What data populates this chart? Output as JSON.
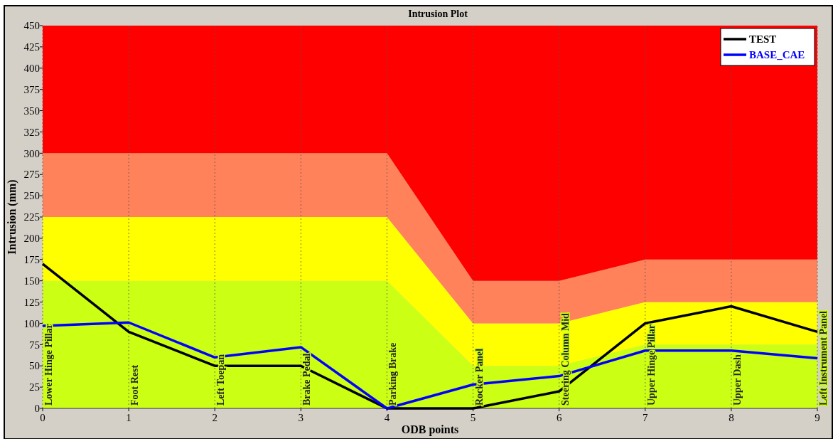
{
  "chart_data": {
    "type": "line",
    "title": "Intrusion Plot",
    "xlabel": "ODB points",
    "ylabel": "Intrusion (mm)",
    "x": [
      0,
      1,
      2,
      3,
      4,
      5,
      6,
      7,
      8,
      9
    ],
    "stacked": true,
    "series": [
      {
        "type": "area",
        "color": "#cbff14",
        "values": [
          150,
          150,
          150,
          150,
          150,
          50,
          50,
          75,
          75,
          75
        ]
      },
      {
        "type": "area",
        "color": "#ffff00",
        "values": [
          75,
          75,
          75,
          75,
          75,
          50,
          50,
          50,
          50,
          50
        ]
      },
      {
        "type": "area",
        "color": "#ff825a",
        "values": [
          75,
          75,
          75,
          75,
          75,
          50,
          50,
          50,
          50,
          50
        ]
      },
      {
        "type": "area",
        "color": "#ff0000",
        "values": [
          150,
          150,
          150,
          150,
          150,
          300,
          300,
          275,
          275,
          275
        ]
      },
      {
        "name": "TEST",
        "color": "#000000",
        "values": [
          170,
          90,
          50,
          50,
          0,
          0,
          20,
          100,
          120,
          90
        ]
      },
      {
        "name": "BASE_CAE",
        "color": "#0000ff",
        "values": [
          97,
          101,
          60,
          72,
          0,
          28,
          38,
          68,
          68,
          59
        ]
      }
    ],
    "annotations": [
      {
        "text": "Lower Hinge Pillar",
        "x": 0,
        "y": 0
      },
      {
        "text": "Foot Rest",
        "x": 1,
        "y": 0
      },
      {
        "text": "Left Toepan",
        "x": 2,
        "y": 0
      },
      {
        "text": "Brake Pedal",
        "x": 3,
        "y": 0
      },
      {
        "text": "Parking Brake",
        "x": 4,
        "y": 0
      },
      {
        "text": "Rocker Panel",
        "x": 5,
        "y": 0
      },
      {
        "text": "Steering Column Mid",
        "x": 6,
        "y": 0
      },
      {
        "text": "Upper Hinge Pillar",
        "x": 7,
        "y": 0
      },
      {
        "text": "Upper Dash",
        "x": 8,
        "y": 0
      },
      {
        "text": "Left Instrument Panel",
        "x": 9,
        "y": 0
      }
    ],
    "xlim": [
      0,
      9
    ],
    "xticks": [
      0,
      1,
      2,
      3,
      4,
      5,
      6,
      7,
      8,
      9
    ],
    "ylim": [
      0,
      450
    ],
    "yticks": [
      0,
      25,
      50,
      75,
      100,
      125,
      150,
      175,
      200,
      225,
      250,
      275,
      300,
      325,
      350,
      375,
      400,
      425,
      450
    ],
    "grid": "x",
    "legend": "top right",
    "line_style": "solid",
    "marker": "none"
  }
}
